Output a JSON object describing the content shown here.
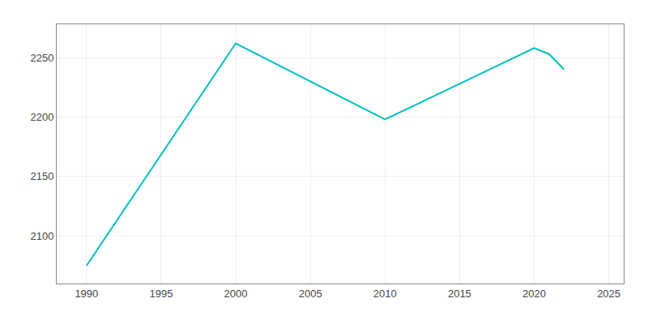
{
  "chart_data": {
    "type": "line",
    "x": [
      1990,
      2000,
      2010,
      2020,
      2021,
      2022
    ],
    "values": [
      2075,
      2262,
      2198,
      2258,
      2253,
      2240
    ],
    "color": "#00C0C0",
    "xlim": [
      1988,
      2026
    ],
    "ylim": [
      2060,
      2278
    ],
    "xticks": [
      1990,
      1995,
      2000,
      2005,
      2010,
      2015,
      2020,
      2025
    ],
    "yticks": [
      2100,
      2150,
      2200,
      2250
    ],
    "grid": true
  }
}
